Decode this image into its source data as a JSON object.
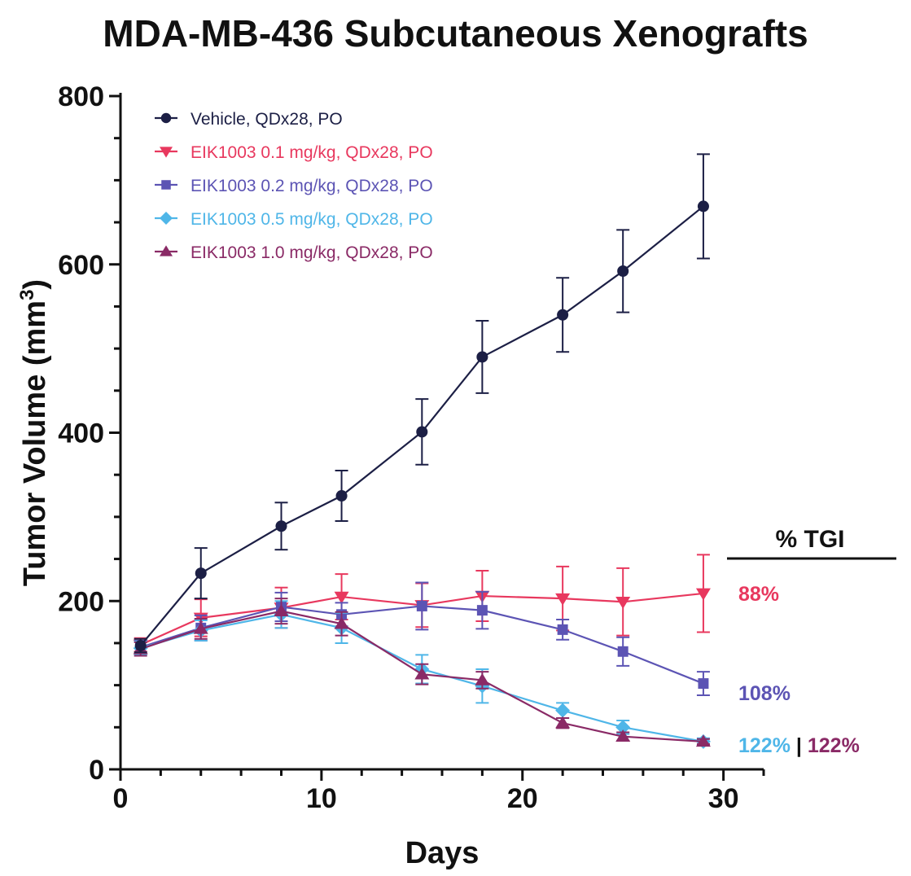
{
  "chart_data": {
    "type": "line",
    "title": "MDA-MB-436 Subcutaneous Xenografts",
    "xlabel": "Days",
    "ylabel_main": "Tumor Volume (mm",
    "ylabel_sup": "3",
    "ylabel_close": ")",
    "xlim": [
      0,
      32
    ],
    "ylim": [
      0,
      800
    ],
    "xticks": [
      0,
      10,
      20,
      30
    ],
    "yticks": [
      0,
      200,
      400,
      600,
      800
    ],
    "x": [
      1,
      4,
      8,
      11,
      15,
      18,
      22,
      25,
      29
    ],
    "series": [
      {
        "name": "Vehicle, QDx28, PO",
        "color": "#1c1f45",
        "marker": "circle",
        "values": [
          147,
          233,
          289,
          325,
          401,
          490,
          540,
          592,
          669
        ],
        "errors": [
          8,
          30,
          28,
          30,
          39,
          43,
          44,
          49,
          62
        ]
      },
      {
        "name": "EIK1003 0.1 mg/kg, QDx28, PO",
        "color": "#e8385e",
        "marker": "triangle-down",
        "values": [
          148,
          180,
          192,
          205,
          195,
          206,
          203,
          199,
          209
        ],
        "errors": [
          8,
          22,
          24,
          27,
          26,
          30,
          38,
          40,
          46
        ]
      },
      {
        "name": "EIK1003 0.2 mg/kg, QDx28, PO",
        "color": "#5c54b4",
        "marker": "square",
        "values": [
          145,
          168,
          193,
          184,
          194,
          189,
          166,
          140,
          102
        ],
        "errors": [
          8,
          15,
          17,
          14,
          28,
          22,
          12,
          17,
          14
        ]
      },
      {
        "name": "EIK1003 0.5 mg/kg, QDx28, PO",
        "color": "#4fb6e8",
        "marker": "diamond",
        "values": [
          144,
          165,
          184,
          168,
          119,
          99,
          70,
          50,
          33
        ],
        "errors": [
          8,
          12,
          16,
          18,
          17,
          20,
          9,
          8,
          4
        ]
      },
      {
        "name": "EIK1003 1.0 mg/kg, QDx28, PO",
        "color": "#8a2a66",
        "marker": "triangle-up",
        "values": [
          143,
          167,
          188,
          173,
          113,
          106,
          55,
          39,
          33
        ],
        "errors": [
          8,
          12,
          15,
          14,
          12,
          10,
          6,
          5,
          3
        ]
      }
    ],
    "tgi": {
      "heading": "% TGI",
      "values": [
        {
          "text": "88%",
          "color": "#e8385e"
        },
        {
          "text": "108%",
          "color": "#5c54b4"
        },
        {
          "text": "122%",
          "color": "#4fb6e8"
        },
        {
          "text": "|",
          "color": "#111111"
        },
        {
          "text": "122%",
          "color": "#8a2a66"
        }
      ]
    }
  }
}
